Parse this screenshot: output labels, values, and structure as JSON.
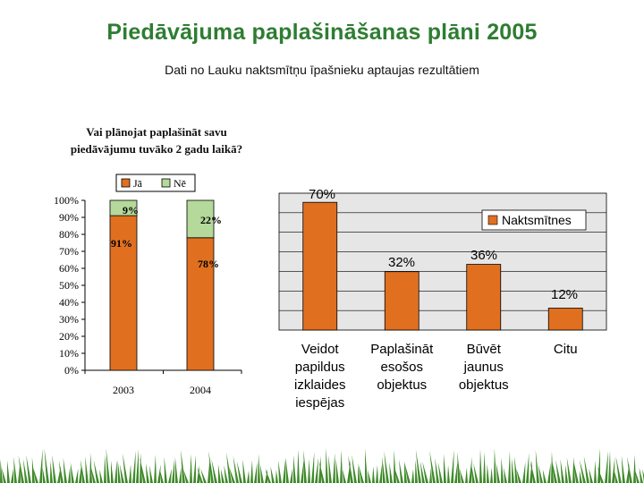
{
  "title": "Piedāvājuma paplašināšanas plāni 2005",
  "subtitle": "Dati no Lauku naktsmītņu īpašnieku aptaujas rezultātiem",
  "colors": {
    "title": "#2e7d32",
    "orange": "#e07020",
    "green": "#b5d99a",
    "plot_bg": "#e6e6e6",
    "grass": "#3f8a2a"
  },
  "chart_data": [
    {
      "type": "bar",
      "stacked": true,
      "title_lines": [
        "Vai plānojat paplašināt savu",
        "piedāvājumu tuvāko 2 gadu laikā?"
      ],
      "categories": [
        "2003",
        "2004"
      ],
      "series": [
        {
          "name": "Jā",
          "values": [
            91,
            78
          ],
          "labels": [
            "91%",
            "78%"
          ]
        },
        {
          "name": "Nē",
          "values": [
            9,
            22
          ],
          "labels": [
            "9%",
            "22%"
          ]
        }
      ],
      "yticks": [
        "100%",
        "90%",
        "80%",
        "70%",
        "60%",
        "50%",
        "40%",
        "30%",
        "20%",
        "10%",
        "0%"
      ],
      "ylim": [
        0,
        100
      ],
      "legend": "top"
    },
    {
      "type": "bar",
      "categories": [
        [
          "Veidot",
          "papildus",
          "izklaides",
          "iespējas"
        ],
        [
          "Paplašināt",
          "esošos",
          "objektus"
        ],
        [
          "Būvēt",
          "jaunus",
          "objektus"
        ],
        [
          "Citu"
        ]
      ],
      "series": [
        {
          "name": "Naktsmītnes",
          "values": [
            70,
            32,
            36,
            12
          ],
          "labels": [
            "70%",
            "32%",
            "36%",
            "12%"
          ]
        }
      ],
      "ylim": [
        0,
        75
      ],
      "grid": true,
      "legend": "top-right"
    }
  ]
}
